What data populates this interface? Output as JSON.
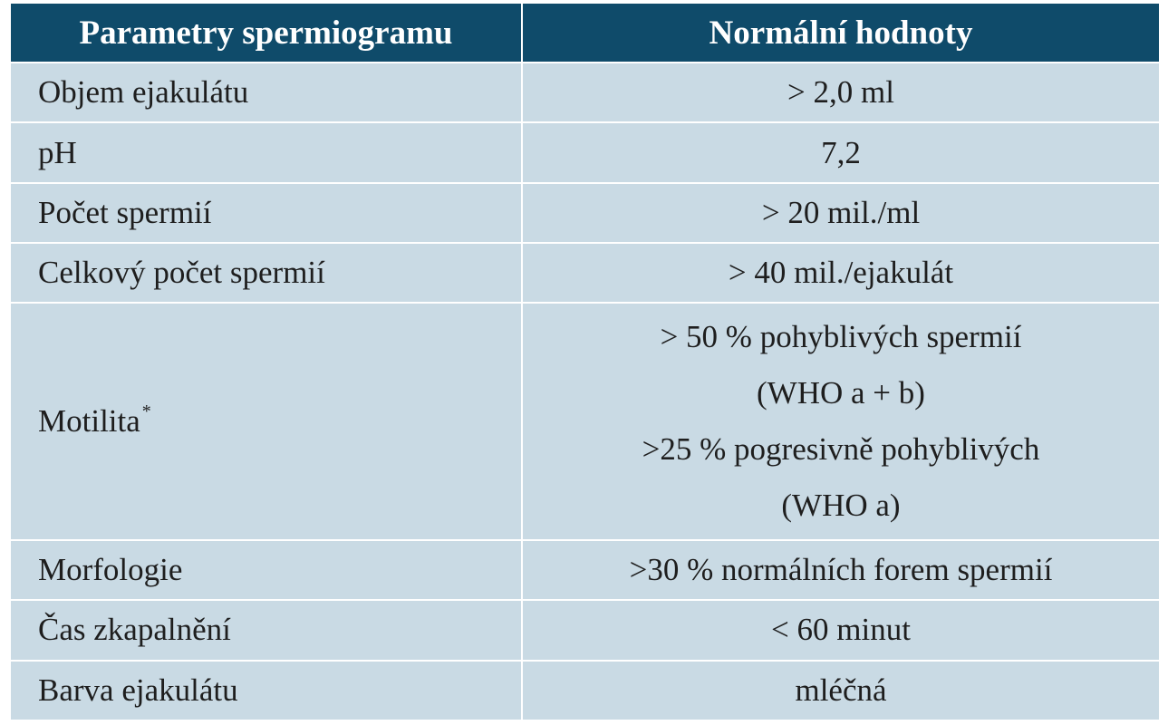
{
  "table": {
    "headers": [
      "Parametry spermiogramu",
      "Normální hodnoty"
    ],
    "rows": [
      {
        "param": "Objem ejakulátu",
        "value": [
          "> 2,0 ml"
        ]
      },
      {
        "param": "pH",
        "value": [
          "7,2"
        ]
      },
      {
        "param": "Počet spermií",
        "value": [
          "> 20 mil./ml"
        ]
      },
      {
        "param": "Celkový počet spermií",
        "value": [
          "> 40 mil./ejakulát"
        ]
      },
      {
        "param": "Motilita",
        "footnote_mark": "*",
        "value": [
          "> 50 % pohyblivých spermií",
          "(WHO a + b)",
          ">25 % pogresivně pohyblivých",
          "(WHO a)"
        ]
      },
      {
        "param": "Morfologie",
        "value": [
          ">30 % normálních forem spermií"
        ]
      },
      {
        "param": "Čas zkapalnění",
        "value": [
          "< 60 minut"
        ]
      },
      {
        "param": "Barva ejakulátu",
        "value": [
          "mléčná"
        ]
      }
    ]
  },
  "colors": {
    "header_bg": "#0f4b6a",
    "header_text": "#ffffff",
    "cell_bg": "#c9dae4",
    "cell_text": "#1e1e1e",
    "grid": "#ffffff"
  }
}
